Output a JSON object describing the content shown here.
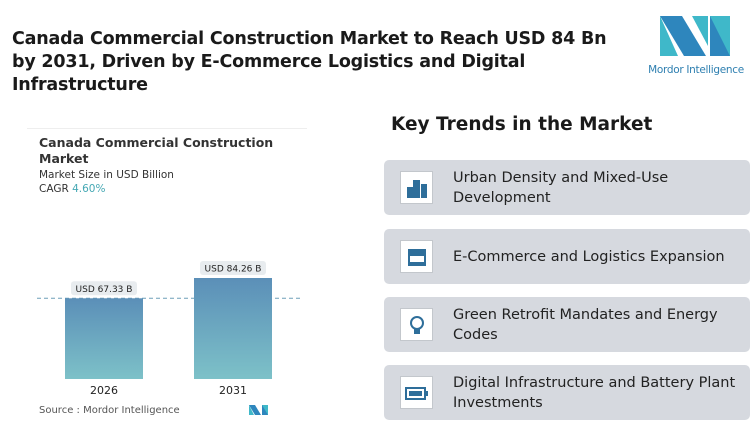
{
  "title": "Canada Commercial Construction Market to Reach USD 84 Bn by 2031, Driven by E-Commerce Logistics and Digital Infrastructure",
  "logo": {
    "text": "Mordor Intelligence"
  },
  "chart_data": {
    "type": "bar",
    "title": "Canada Commercial Construction Market",
    "subtitle": "Market Size in USD Billion",
    "cagr_label": "CAGR",
    "cagr_value": "4.60%",
    "categories": [
      "2026",
      "2031"
    ],
    "values": [
      67.33,
      84.26
    ],
    "data_labels": [
      "USD 67.33 B",
      "USD 84.26 B"
    ],
    "source": "Source :  Mordor Intelligence",
    "colors": {
      "bar_top": "#5b8fb8",
      "bar_bottom": "#7dc1c8",
      "cagr": "#45a8b4"
    },
    "grid": false
  },
  "trends": {
    "title": "Key Trends in the Market",
    "items": [
      {
        "label": "Urban Density and Mixed-Use Development",
        "icon": "buildings-icon"
      },
      {
        "label": "E-Commerce and Logistics Expansion",
        "icon": "storefront-icon"
      },
      {
        "label": "Green Retrofit Mandates and Energy Codes",
        "icon": "lightbulb-icon"
      },
      {
        "label": "Digital Infrastructure and Battery Plant Investments",
        "icon": "battery-icon"
      }
    ]
  }
}
